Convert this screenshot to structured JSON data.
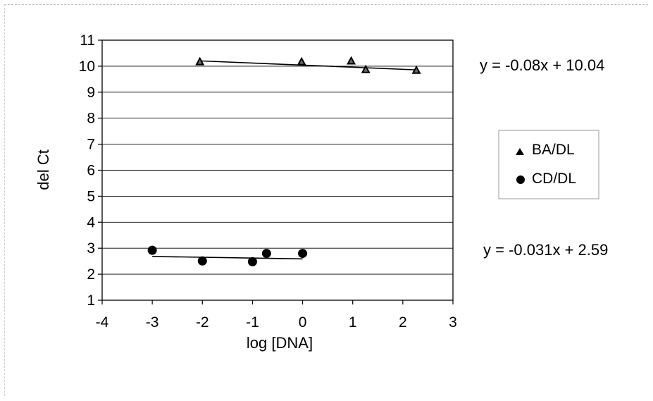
{
  "chart_data": {
    "type": "scatter",
    "title": "",
    "xlabel": "log [DNA]",
    "ylabel": "del Ct",
    "xlim": [
      -4,
      3
    ],
    "ylim": [
      1,
      11
    ],
    "x_ticks": [
      "-4",
      "-3",
      "-2",
      "-1",
      "0",
      "1",
      "2",
      "3"
    ],
    "y_ticks": [
      "1",
      "2",
      "3",
      "4",
      "5",
      "6",
      "7",
      "8",
      "9",
      "10",
      "11"
    ],
    "grid": "horizontal",
    "legend_position": "right",
    "series": [
      {
        "name": "BA/DL",
        "marker": "triangle",
        "color": "#000000",
        "x": [
          -2.05,
          -0.02,
          0.97,
          1.26,
          2.27
        ],
        "y": [
          10.17,
          10.17,
          10.2,
          9.87,
          9.84
        ],
        "trendline": {
          "slope": -0.08,
          "intercept": 10.04,
          "x_range": [
            -2.05,
            2.27
          ],
          "equation": "y = -0.08x + 10.04"
        }
      },
      {
        "name": "CD/DL",
        "marker": "circle",
        "color": "#000000",
        "x": [
          -3.0,
          -2.0,
          -1.0,
          -0.72,
          0.0
        ],
        "y": [
          2.92,
          2.51,
          2.48,
          2.8,
          2.8
        ],
        "trendline": {
          "slope": -0.031,
          "intercept": 2.59,
          "x_range": [
            -3.0,
            0.0
          ],
          "equation": "y = -0.031x + 2.59"
        }
      }
    ]
  }
}
